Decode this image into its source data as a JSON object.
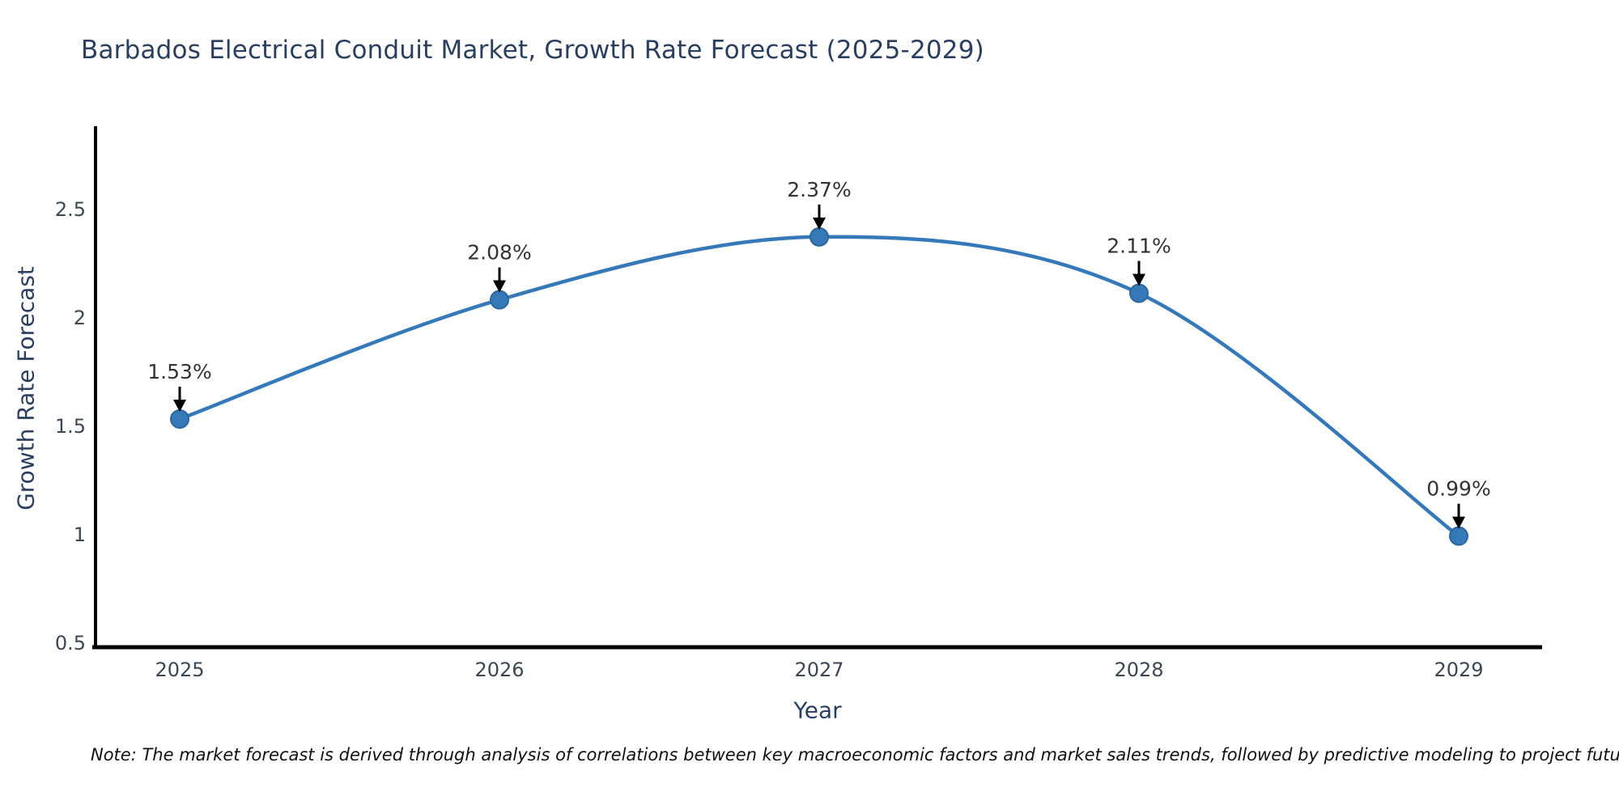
{
  "title": "Barbados Electrical Conduit Market, Growth Rate Forecast (2025-2029)",
  "note": "Note: The market forecast is derived through analysis of correlations between key macroeconomic factors and market sales trends, followed by predictive modeling to project future sales",
  "colors": {
    "line": "#3579b8",
    "marker_fill": "#3579b8",
    "marker_stroke": "#2c669c",
    "axis": "#000000",
    "tick_text": "#3b4754",
    "annotation_text": "#333333",
    "arrow": "#000000",
    "title_text": "#2a3f5f"
  },
  "chart_data": {
    "type": "line",
    "title": "Barbados Electrical Conduit Market, Growth Rate Forecast (2025-2029)",
    "x": [
      2025,
      2026,
      2027,
      2028,
      2029
    ],
    "series": [
      {
        "name": "Growth Rate Forecast",
        "values": [
          1.53,
          2.08,
          2.37,
          2.11,
          0.99
        ]
      }
    ],
    "point_labels": [
      "1.53%",
      "2.08%",
      "2.37%",
      "2.11%",
      "0.99%"
    ],
    "xlabel": "Year",
    "ylabel": "Growth Rate Forecast",
    "xticks": [
      2025,
      2026,
      2027,
      2028,
      2029
    ],
    "yticks": [
      0.5,
      1,
      1.5,
      2,
      2.5
    ],
    "ylim": [
      0.48,
      2.9
    ],
    "grid": false,
    "legend": "none",
    "smooth": true,
    "annotations": "value labels with black down-arrows above each point"
  }
}
